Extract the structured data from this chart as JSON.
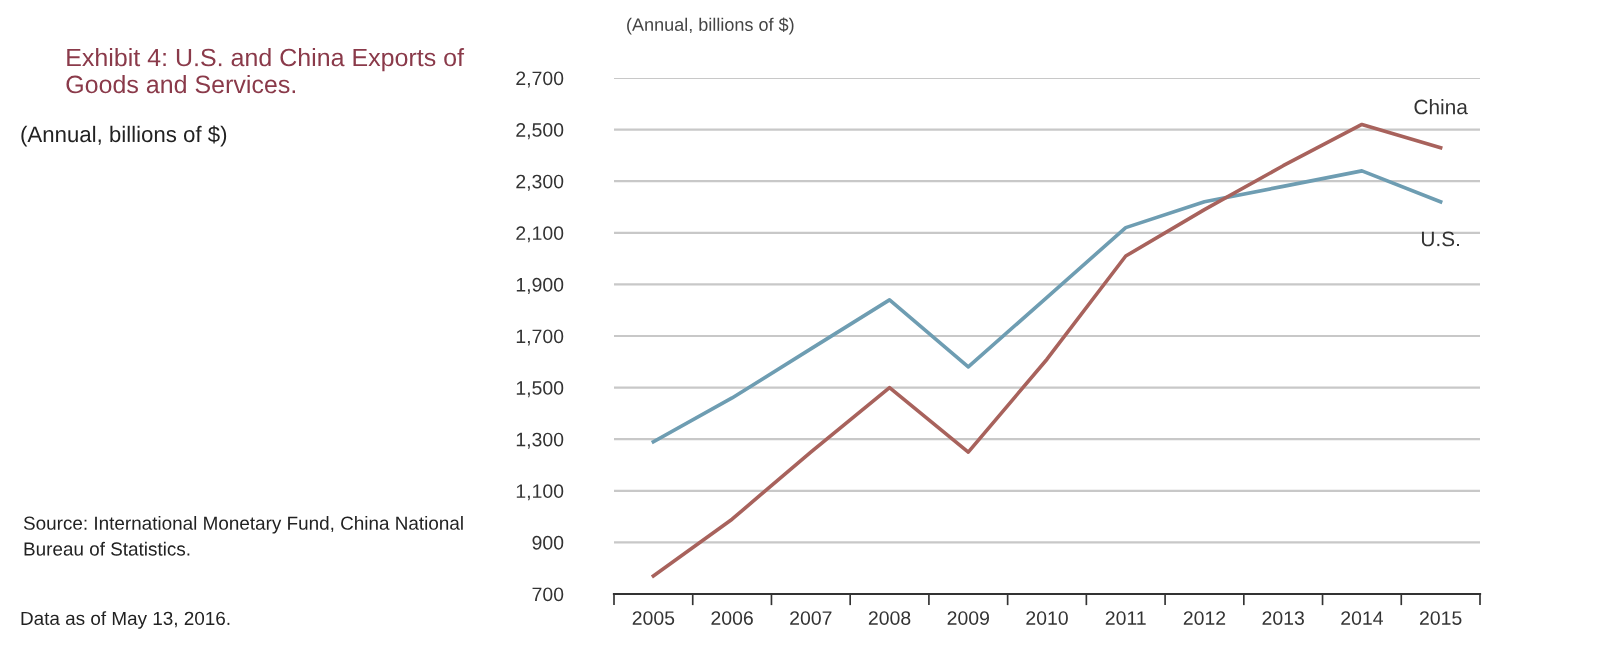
{
  "chart_data": {
    "type": "line",
    "title": "Exhibit 4: U.S. and China Exports of Goods and Services.",
    "subtitle": "(Annual, billions of $)",
    "ylabel": "(Annual, billions of $)",
    "categories": [
      "2005",
      "2006",
      "2007",
      "2008",
      "2009",
      "2010",
      "2011",
      "2012",
      "2013",
      "2014",
      "2015"
    ],
    "series": [
      {
        "name": "U.S.",
        "color": "#6e9db2",
        "values": [
          1290,
          1460,
          1650,
          1840,
          1580,
          1850,
          2120,
          2220,
          2280,
          2340,
          2220
        ]
      },
      {
        "name": "China",
        "color": "#a8625c",
        "values": [
          770,
          990,
          1250,
          1500,
          1250,
          1610,
          2010,
          2190,
          2360,
          2520,
          2430
        ]
      }
    ],
    "ylim": [
      700,
      2700
    ],
    "yticks": [
      {
        "value": 700,
        "label": "700"
      },
      {
        "value": 900,
        "label": "900"
      },
      {
        "value": 1100,
        "label": "1,100"
      },
      {
        "value": 1300,
        "label": "1,300"
      },
      {
        "value": 1500,
        "label": "1,500"
      },
      {
        "value": 1700,
        "label": "1,700"
      },
      {
        "value": 1900,
        "label": "1,900"
      },
      {
        "value": 2100,
        "label": "2,100"
      },
      {
        "value": 2300,
        "label": "2,300"
      },
      {
        "value": 2500,
        "label": "2,500"
      },
      {
        "value": 2700,
        "label": "2,700"
      }
    ],
    "grid": "y",
    "legend": false,
    "marker": "none",
    "line_style": "solid",
    "annotations": [
      "Source: International Monetary Fund, China National Bureau of Statistics.",
      "Data as of May 13, 2016."
    ]
  }
}
